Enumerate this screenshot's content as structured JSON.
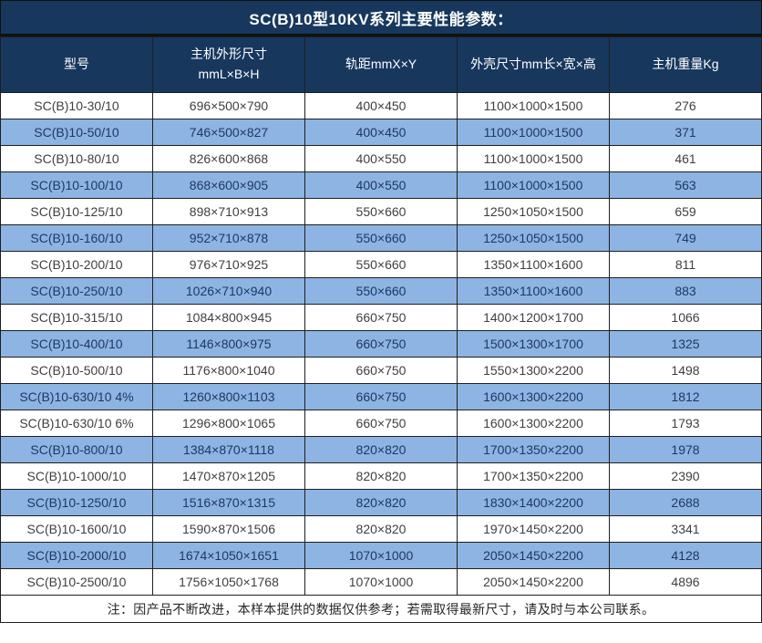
{
  "title": "SC(B)10型10KV系列主要性能参数：",
  "colors": {
    "header_bg": "#17375D",
    "row_alt_bg": "#8DB4E2",
    "row_text": "#3F3F3F",
    "row_alt_text": "#1F3864",
    "header_text": "#FFFFFF"
  },
  "table": {
    "headers": [
      "型号",
      "主机外形尺寸\nmmL×B×H",
      "轨距mmX×Y",
      "外壳尺寸mm长×宽×高",
      "主机重量Kg"
    ],
    "rows": [
      [
        "SC(B)10-30/10",
        "696×500×790",
        "400×450",
        "1100×1000×1500",
        "276"
      ],
      [
        "SC(B)10-50/10",
        "746×500×827",
        "400×450",
        "1100×1000×1500",
        "371"
      ],
      [
        "SC(B)10-80/10",
        "826×600×868",
        "400×550",
        "1100×1000×1500",
        "461"
      ],
      [
        "SC(B)10-100/10",
        "868×600×905",
        "400×550",
        "1100×1000×1500",
        "563"
      ],
      [
        "SC(B)10-125/10",
        "898×710×913",
        "550×660",
        "1250×1050×1500",
        "659"
      ],
      [
        "SC(B)10-160/10",
        "952×710×878",
        "550×660",
        "1250×1050×1500",
        "749"
      ],
      [
        "SC(B)10-200/10",
        "976×710×925",
        "550×660",
        "1350×1100×1600",
        "811"
      ],
      [
        "SC(B)10-250/10",
        "1026×710×940",
        "550×660",
        "1350×1100×1600",
        "883"
      ],
      [
        "SC(B)10-315/10",
        "1084×800×945",
        "660×750",
        "1400×1200×1700",
        "1066"
      ],
      [
        "SC(B)10-400/10",
        "1146×800×975",
        "660×750",
        "1500×1300×1700",
        "1325"
      ],
      [
        "SC(B)10-500/10",
        "1176×800×1040",
        "660×750",
        "1550×1300×2200",
        "1498"
      ],
      [
        "SC(B)10-630/10 4%",
        "1260×800×1103",
        "660×750",
        "1600×1300×2200",
        "1812"
      ],
      [
        "SC(B)10-630/10 6%",
        "1296×800×1065",
        "660×750",
        "1600×1300×2200",
        "1793"
      ],
      [
        "SC(B)10-800/10",
        "1384×870×1118",
        "820×820",
        "1700×1350×2200",
        "1978"
      ],
      [
        "SC(B)10-1000/10",
        "1470×870×1205",
        "820×820",
        "1700×1350×2200",
        "2390"
      ],
      [
        "SC(B)10-1250/10",
        "1516×870×1315",
        "820×820",
        "1830×1400×2200",
        "2688"
      ],
      [
        "SC(B)10-1600/10",
        "1590×870×1506",
        "820×820",
        "1970×1450×2200",
        "3341"
      ],
      [
        "SC(B)10-2000/10",
        "1674×1050×1651",
        "1070×1000",
        "2050×1450×2200",
        "4128"
      ],
      [
        "SC(B)10-2500/10",
        "1756×1050×1768",
        "1070×1000",
        "2050×1450×2200",
        "4896"
      ]
    ],
    "note": "注：因产品不断改进，本样本提供的数据仅供参考；若需取得最新尺寸，请及时与本公司联系。"
  }
}
